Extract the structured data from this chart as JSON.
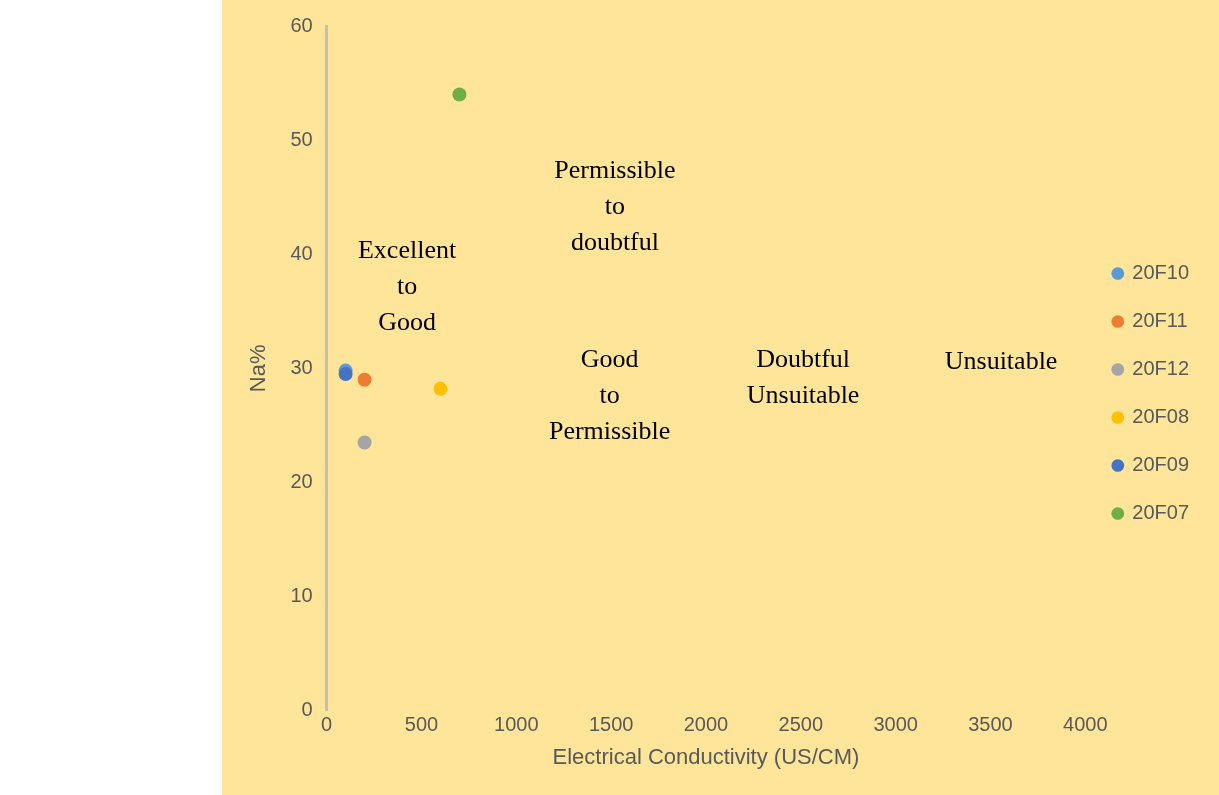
{
  "chart_data": {
    "type": "scatter",
    "xlabel": "Electrical Conductivity (US/CM)",
    "ylabel": "Na%",
    "xlim": [
      0,
      4000
    ],
    "xticks": [
      0,
      500,
      1000,
      1500,
      2000,
      2500,
      3000,
      3500,
      4000
    ],
    "ylim": [
      0,
      60
    ],
    "yticks": [
      0,
      10,
      20,
      30,
      40,
      50,
      60
    ],
    "grid": false,
    "legend": "right",
    "marker": "circle",
    "series": [
      {
        "name": "20F10",
        "color": "#5b9bd5",
        "x": [
          100
        ],
        "values": [
          29.8
        ]
      },
      {
        "name": "20F11",
        "color": "#ed7d31",
        "x": [
          200
        ],
        "values": [
          29.0
        ]
      },
      {
        "name": "20F12",
        "color": "#a5a5a5",
        "x": [
          200
        ],
        "values": [
          23.5
        ]
      },
      {
        "name": "20F08",
        "color": "#ffc000",
        "x": [
          600
        ],
        "values": [
          28.2
        ]
      },
      {
        "name": "20F09",
        "color": "#4472c4",
        "x": [
          100
        ],
        "values": [
          29.5
        ]
      },
      {
        "name": "20F07",
        "color": "#70ad47",
        "x": [
          700
        ],
        "values": [
          54.0
        ]
      }
    ],
    "annotations": [
      "Excellent\nto\nGood",
      "Permissible\nto\ndoubtful",
      "Good\nto\nPermissible",
      "Doubtful\nUnsuitable",
      "Unsuitable"
    ]
  }
}
